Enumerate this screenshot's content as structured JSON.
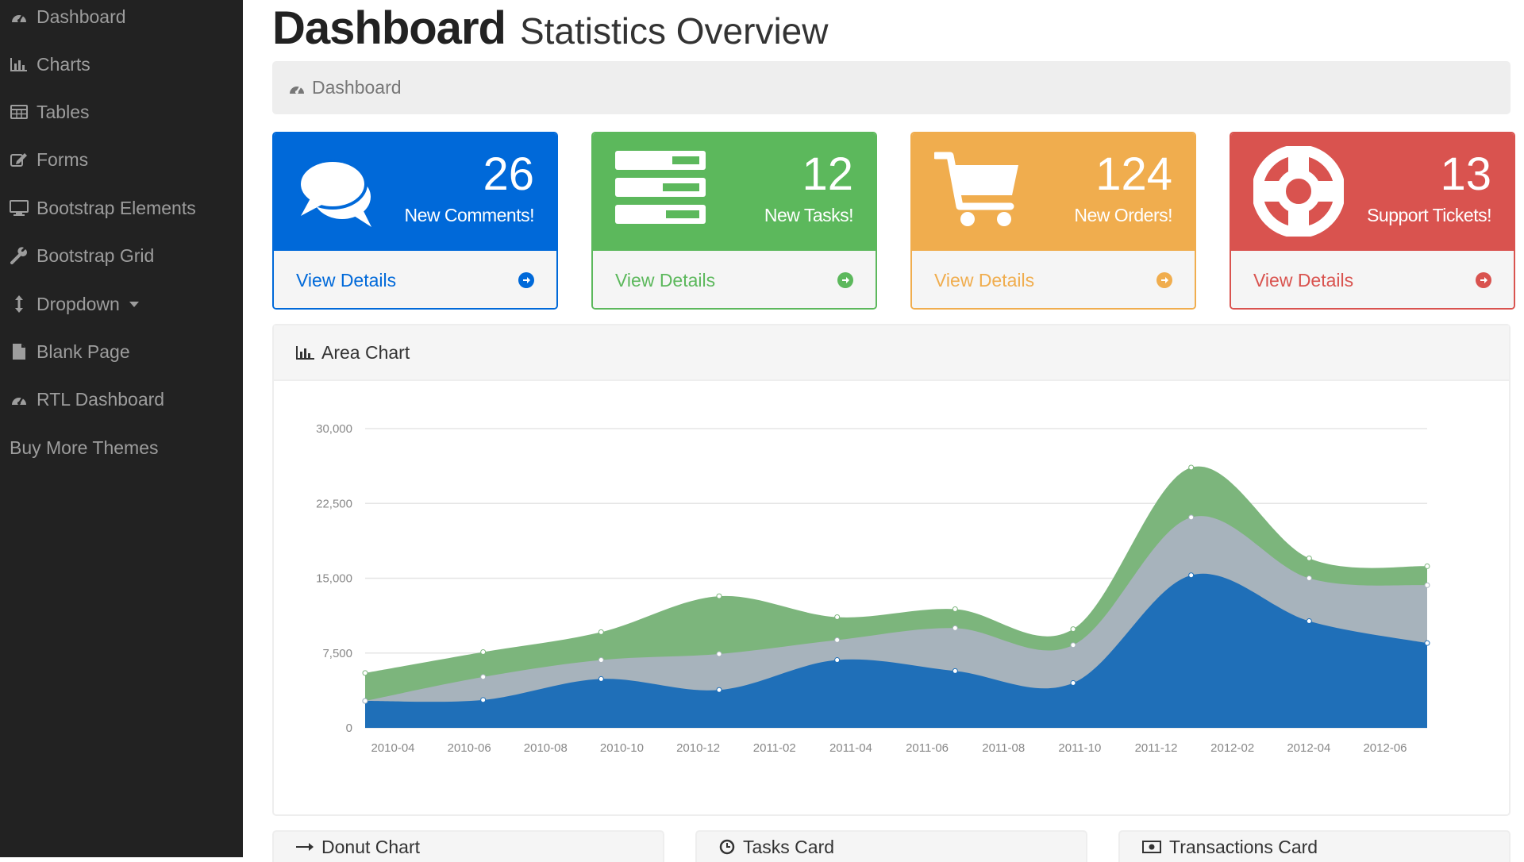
{
  "sidebar": {
    "items": [
      {
        "label": "Dashboard",
        "icon": "dashboard-icon"
      },
      {
        "label": "Charts",
        "icon": "bar-chart-icon"
      },
      {
        "label": "Tables",
        "icon": "table-icon"
      },
      {
        "label": "Forms",
        "icon": "edit-icon"
      },
      {
        "label": "Bootstrap Elements",
        "icon": "desktop-icon"
      },
      {
        "label": "Bootstrap Grid",
        "icon": "wrench-icon"
      },
      {
        "label": "Dropdown",
        "icon": "arrows-v-icon"
      },
      {
        "label": "Blank Page",
        "icon": "file-icon"
      },
      {
        "label": "RTL Dashboard",
        "icon": "dashboard-icon"
      },
      {
        "label": "Buy More Themes",
        "icon": ""
      }
    ]
  },
  "header": {
    "title": "Dashboard",
    "subtitle": "Statistics Overview"
  },
  "breadcrumb": {
    "label": "Dashboard"
  },
  "panels": [
    {
      "count": "26",
      "label": "New Comments!",
      "link": "View Details",
      "color": "#0069d9",
      "icon": "comments-icon"
    },
    {
      "count": "12",
      "label": "New Tasks!",
      "link": "View Details",
      "color": "#5cb85c",
      "icon": "tasks-icon"
    },
    {
      "count": "124",
      "label": "New Orders!",
      "link": "View Details",
      "color": "#f0ad4e",
      "icon": "shopping-cart-icon"
    },
    {
      "count": "13",
      "label": "Support Tickets!",
      "link": "View Details",
      "color": "#d9534f",
      "icon": "support-icon"
    }
  ],
  "area_panel": {
    "title": "Area Chart"
  },
  "bottom_panels": [
    {
      "title": "Donut Chart",
      "icon": "arrow-right-icon"
    },
    {
      "title": "Tasks Card",
      "icon": "clock-icon"
    },
    {
      "title": "Transactions Card",
      "icon": "money-icon"
    }
  ],
  "chart_data": {
    "type": "area",
    "stacked": true,
    "x": [
      "2010-03",
      "2010-06",
      "2010-09",
      "2010-12",
      "2011-03",
      "2011-06",
      "2011-09",
      "2011-12",
      "2012-03",
      "2012-06"
    ],
    "x_ticks": [
      "2010-04",
      "2010-06",
      "2010-08",
      "2010-10",
      "2010-12",
      "2011-02",
      "2011-04",
      "2011-06",
      "2011-08",
      "2011-10",
      "2011-12",
      "2012-02",
      "2012-04",
      "2012-06"
    ],
    "y_ticks": [
      "0",
      "7,500",
      "15,000",
      "22,500",
      "30,000"
    ],
    "ylim": [
      0,
      30000
    ],
    "grid": true,
    "series": [
      {
        "color": "#1f6fb8",
        "values": [
          2700,
          2800,
          4900,
          3800,
          6800,
          5700,
          4500,
          15300,
          10700,
          8500
        ]
      },
      {
        "color": "#a7b3bc",
        "values": [
          0,
          2300,
          1900,
          3600,
          2000,
          4300,
          3800,
          5800,
          4300,
          5800
        ]
      },
      {
        "color": "#7cb57c",
        "values": [
          2800,
          2500,
          2800,
          5800,
          2300,
          1900,
          1600,
          5000,
          2000,
          1900
        ]
      }
    ]
  }
}
